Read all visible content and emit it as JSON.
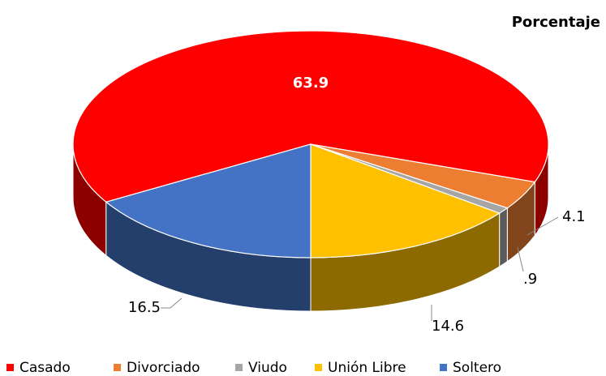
{
  "chart_data": {
    "type": "pie3d",
    "title": "Porcentaje",
    "categories": [
      "Casado",
      "Divorciado",
      "Viudo",
      "Unión Libre",
      "Soltero"
    ],
    "values": [
      63.9,
      4.1,
      0.9,
      14.6,
      16.5
    ],
    "value_labels": [
      "63.9",
      "4.1",
      ".9",
      "14.6",
      "16.5"
    ],
    "colors": [
      "#ff0000",
      "#ed7d31",
      "#a5a5a5",
      "#ffc000",
      "#4472c4"
    ],
    "legend": "bottom"
  }
}
